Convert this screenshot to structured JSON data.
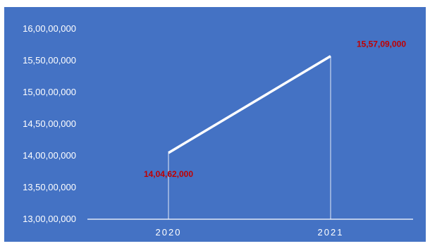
{
  "chart_data": {
    "type": "line",
    "title": "",
    "xlabel": "",
    "ylabel": "",
    "categories": [
      "2020",
      "2021"
    ],
    "series": [
      {
        "values": [
          140462000,
          155709000
        ],
        "data_labels": [
          "14,04,62,000",
          "15,57,09,000"
        ]
      }
    ],
    "ylim": [
      130000000,
      160000000
    ],
    "y_ticks": [
      130000000,
      135000000,
      140000000,
      145000000,
      150000000,
      155000000,
      160000000
    ],
    "y_tick_labels": [
      "13,00,00,000",
      "13,50,00,000",
      "14,00,00,000",
      "14,50,00,000",
      "15,00,00,000",
      "15,50,00,000",
      "16,00,00,000"
    ],
    "grid": false,
    "drop_lines": true,
    "legend": "none",
    "colors": {
      "background": "#4472c4",
      "line": "#ffffff",
      "axis": "#ffffff",
      "data_label": "#c00000"
    }
  }
}
